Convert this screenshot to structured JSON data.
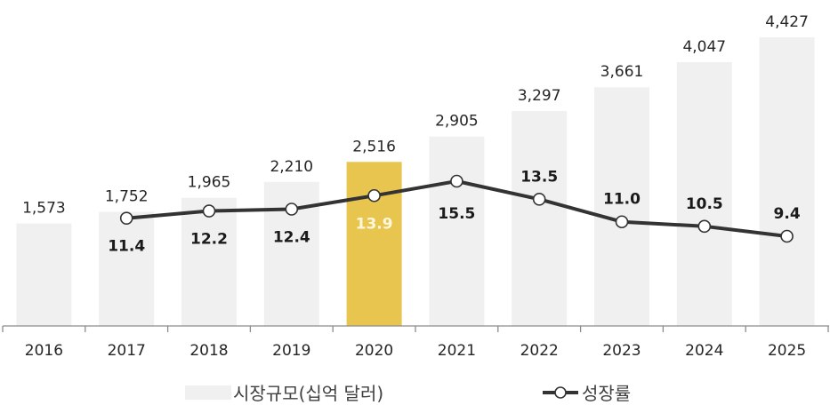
{
  "chart_data": {
    "type": "bar+line",
    "title": "",
    "categories": [
      "2016",
      "2017",
      "2018",
      "2019",
      "2020",
      "2021",
      "2022",
      "2023",
      "2024",
      "2025"
    ],
    "series": [
      {
        "name": "시장규모(십억 달러)",
        "type": "bar",
        "values": [
          1573,
          1752,
          1965,
          2210,
          2516,
          2905,
          3297,
          3661,
          4047,
          4427
        ],
        "labels": [
          "1,573",
          "1,752",
          "1,965",
          "2,210",
          "2,516",
          "2,905",
          "3,297",
          "3,661",
          "4,047",
          "4,427"
        ],
        "color": "#f0f0f0",
        "highlight_index": 4,
        "highlight_color": "#e8c54e"
      },
      {
        "name": "성장률",
        "type": "line",
        "values": [
          null,
          11.4,
          12.2,
          12.4,
          13.9,
          15.5,
          13.5,
          11.0,
          10.5,
          9.4
        ],
        "labels": [
          "",
          "11.4",
          "12.2",
          "12.4",
          "13.9",
          "15.5",
          "13.5",
          "11.0",
          "10.5",
          "9.4"
        ],
        "color": "#333333",
        "marker": "open-circle"
      }
    ],
    "xlabel": "",
    "ylabel": "",
    "grid": false,
    "legend_position": "bottom"
  },
  "legend": {
    "bar_label": "시장규모(십억 달러)",
    "line_label": "성장률"
  }
}
